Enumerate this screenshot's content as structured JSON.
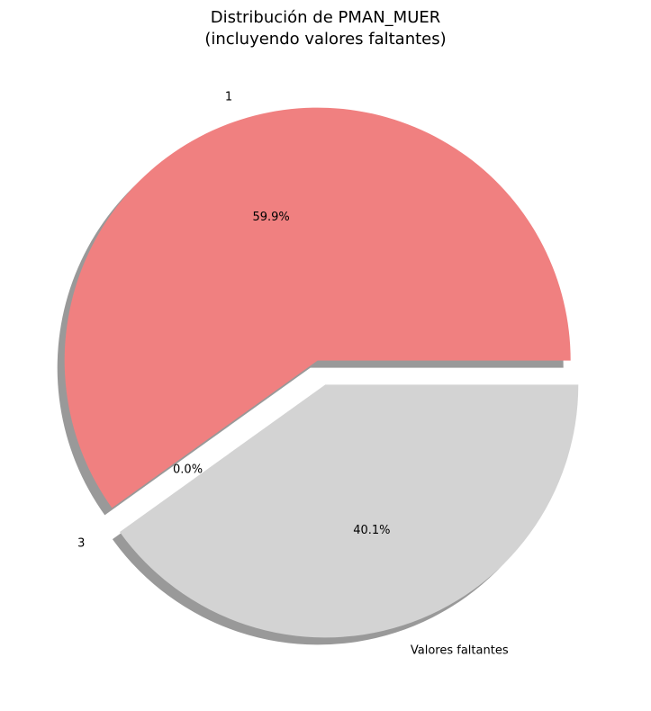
{
  "chart_data": {
    "type": "pie",
    "title": "Distribución de PMAN_MUER",
    "subtitle": "(incluyendo valores faltantes)",
    "categories": [
      "1",
      "3",
      "Valores faltantes"
    ],
    "values": [
      59.9,
      0.0,
      40.1
    ],
    "percent_labels": [
      "59.9%",
      "0.0%",
      "40.1%"
    ],
    "colors": [
      "#f08080",
      "#add8e6",
      "#d3d3d3"
    ],
    "shadow": true,
    "exploded": true
  }
}
